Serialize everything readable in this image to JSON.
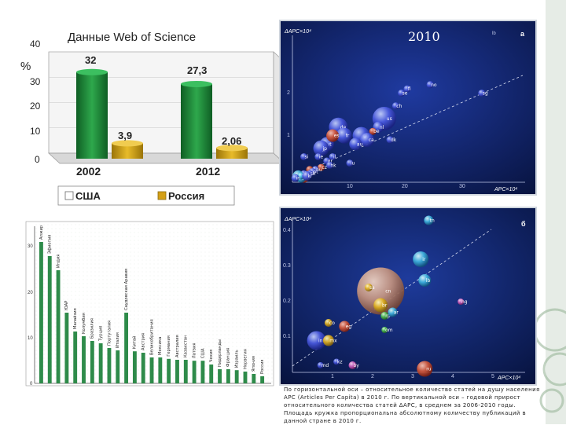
{
  "chart_data": [
    {
      "type": "bar",
      "title": "Данные Web of Science",
      "ylabel": "%",
      "categories": [
        "2002",
        "2012"
      ],
      "yticks": [
        "0",
        "10",
        "20",
        "30",
        "40"
      ],
      "ylim": [
        0,
        40
      ],
      "series": [
        {
          "name": "США",
          "values": [
            32,
            27.3
          ],
          "labels": [
            "32",
            "27,3"
          ]
        },
        {
          "name": "Россия",
          "values": [
            3.9,
            2.06
          ],
          "labels": [
            "3,9",
            "2,06"
          ]
        }
      ],
      "colors": {
        "usa": "#1e8a3a",
        "russia": "#d4a017"
      }
    },
    {
      "type": "bar",
      "yticks": [
        "0",
        "10",
        "20",
        "30"
      ],
      "ylim": [
        0,
        33
      ],
      "categories": [
        "Алжир",
        "Эфиопия",
        "Индия",
        "ЮАР",
        "Малайзия",
        "Колумбия",
        "Бразилия",
        "Турция",
        "Португалия",
        "Италия",
        "Саудовская Аравия",
        "Китай",
        "Австрия",
        "Великобритания",
        "Мексика",
        "Германия",
        "Австралия",
        "Казахстан",
        "Латвия",
        "США",
        "Чехия",
        "Нидерланды",
        "Франция",
        "Израиль",
        "Норвегия",
        "Япония",
        "Россия"
      ],
      "values": [
        30,
        27,
        24,
        15,
        11,
        10,
        9,
        8.5,
        7.5,
        7,
        15,
        6.8,
        6.5,
        5.5,
        5.5,
        5.2,
        5,
        5,
        4.8,
        4.8,
        4,
        3,
        3,
        2.8,
        2.5,
        2,
        1.5
      ]
    },
    {
      "type": "scatter",
      "panel": "a",
      "year": "2010",
      "xlabel": "APC×10⁴",
      "ylabel": "ΔAPC×10⁴",
      "xticks": [
        "10",
        "20",
        "30"
      ],
      "yticks": [
        "1",
        "2"
      ],
      "corner_label": "lb",
      "points": [
        {
          "label": "sg",
          "x": 33,
          "y": 2.1
        },
        {
          "label": "no",
          "x": 24,
          "y": 2.3
        },
        {
          "label": "fi",
          "x": 20,
          "y": 2.2
        },
        {
          "label": "se",
          "x": 19,
          "y": 2.1
        },
        {
          "label": "ch",
          "x": 18,
          "y": 1.8
        },
        {
          "label": "us",
          "x": 16,
          "y": 1.5
        },
        {
          "label": "nl",
          "x": 15,
          "y": 1.3
        },
        {
          "label": "be",
          "x": 14,
          "y": 1.2
        },
        {
          "label": "dk",
          "x": 17,
          "y": 1.0
        },
        {
          "label": "gb",
          "x": 12,
          "y": 1.1
        },
        {
          "label": "ca",
          "x": 13,
          "y": 1.0
        },
        {
          "label": "au",
          "x": 11,
          "y": 0.9
        },
        {
          "label": "de",
          "x": 8,
          "y": 1.3
        },
        {
          "label": "fr",
          "x": 9,
          "y": 1.1
        },
        {
          "label": "it",
          "x": 6,
          "y": 0.9
        },
        {
          "label": "es",
          "x": 7,
          "y": 1.1
        },
        {
          "label": "jp",
          "x": 5,
          "y": 0.8
        },
        {
          "label": "il",
          "x": 7,
          "y": 0.6
        },
        {
          "label": "gr",
          "x": 6,
          "y": 0.5
        },
        {
          "label": "hk",
          "x": 6.5,
          "y": 0.4
        },
        {
          "label": "cz",
          "x": 5,
          "y": 0.35
        },
        {
          "label": "hu",
          "x": 4,
          "y": 0.3
        },
        {
          "label": "pl",
          "x": 3,
          "y": 0.3
        },
        {
          "label": "pt",
          "x": 3.5,
          "y": 0.25
        },
        {
          "label": "ie",
          "x": 4.5,
          "y": 0.6
        },
        {
          "label": "lu",
          "x": 10,
          "y": 0.45
        },
        {
          "label": "sk",
          "x": 3,
          "y": 0.2
        },
        {
          "label": "hr",
          "x": 2,
          "y": 0.2
        },
        {
          "label": "si",
          "x": 2,
          "y": 0.6
        },
        {
          "label": "cn",
          "x": 1,
          "y": 0.15
        },
        {
          "label": "ru",
          "x": 2,
          "y": 0.1
        },
        {
          "label": "br",
          "x": 1.5,
          "y": 0.1
        },
        {
          "label": "tr",
          "x": 1.5,
          "y": 0.15
        },
        {
          "label": "kr",
          "x": 2.5,
          "y": 0.15
        },
        {
          "label": "in",
          "x": 0.5,
          "y": 0.1
        }
      ]
    },
    {
      "type": "scatter",
      "panel": "б",
      "xlabel": "APC×10⁴",
      "ylabel": "ΔAPC×10⁴",
      "xticks": [
        "1",
        "2",
        "3",
        "4",
        "5"
      ],
      "yticks": [
        "0.1",
        "0.2",
        "0.3",
        "0.4"
      ],
      "points": [
        {
          "label": "tn",
          "x": 3.4,
          "y": 0.43
        },
        {
          "label": "ir",
          "x": 3.2,
          "y": 0.32
        },
        {
          "label": "lb",
          "x": 3.3,
          "y": 0.26
        },
        {
          "label": "hg",
          "x": 4.2,
          "y": 0.2
        },
        {
          "label": "cn",
          "x": 2.2,
          "y": 0.23
        },
        {
          "label": "sa",
          "x": 1.9,
          "y": 0.24
        },
        {
          "label": "br",
          "x": 2.2,
          "y": 0.19
        },
        {
          "label": "rp",
          "x": 2.3,
          "y": 0.16
        },
        {
          "label": "ar",
          "x": 2.5,
          "y": 0.17
        },
        {
          "label": "om",
          "x": 2.3,
          "y": 0.12
        },
        {
          "label": "co",
          "x": 0.9,
          "y": 0.14
        },
        {
          "label": "eg",
          "x": 1.3,
          "y": 0.13
        },
        {
          "label": "in",
          "x": 0.6,
          "y": 0.09
        },
        {
          "label": "mx",
          "x": 0.9,
          "y": 0.09
        },
        {
          "label": "md",
          "x": 0.7,
          "y": 0.02
        },
        {
          "label": "by",
          "x": 1.5,
          "y": 0.02
        },
        {
          "label": "ru",
          "x": 3.3,
          "y": 0.01
        },
        {
          "label": "kz",
          "x": 1.1,
          "y": 0.03
        }
      ]
    }
  ],
  "caption": "По горизонтальной оси – относительное количество статей на душу населения APC (Articles Per Capita) в 2010 г. По вертикальной оси – годовой прирост относительного количества статей ΔAPC, в среднем за 2006-2010 годы. Площадь кружка пропорциональна абсолютному количеству публикаций в данной стране в 2010 г.",
  "legend": {
    "usa": "США",
    "russia": "Россия"
  }
}
